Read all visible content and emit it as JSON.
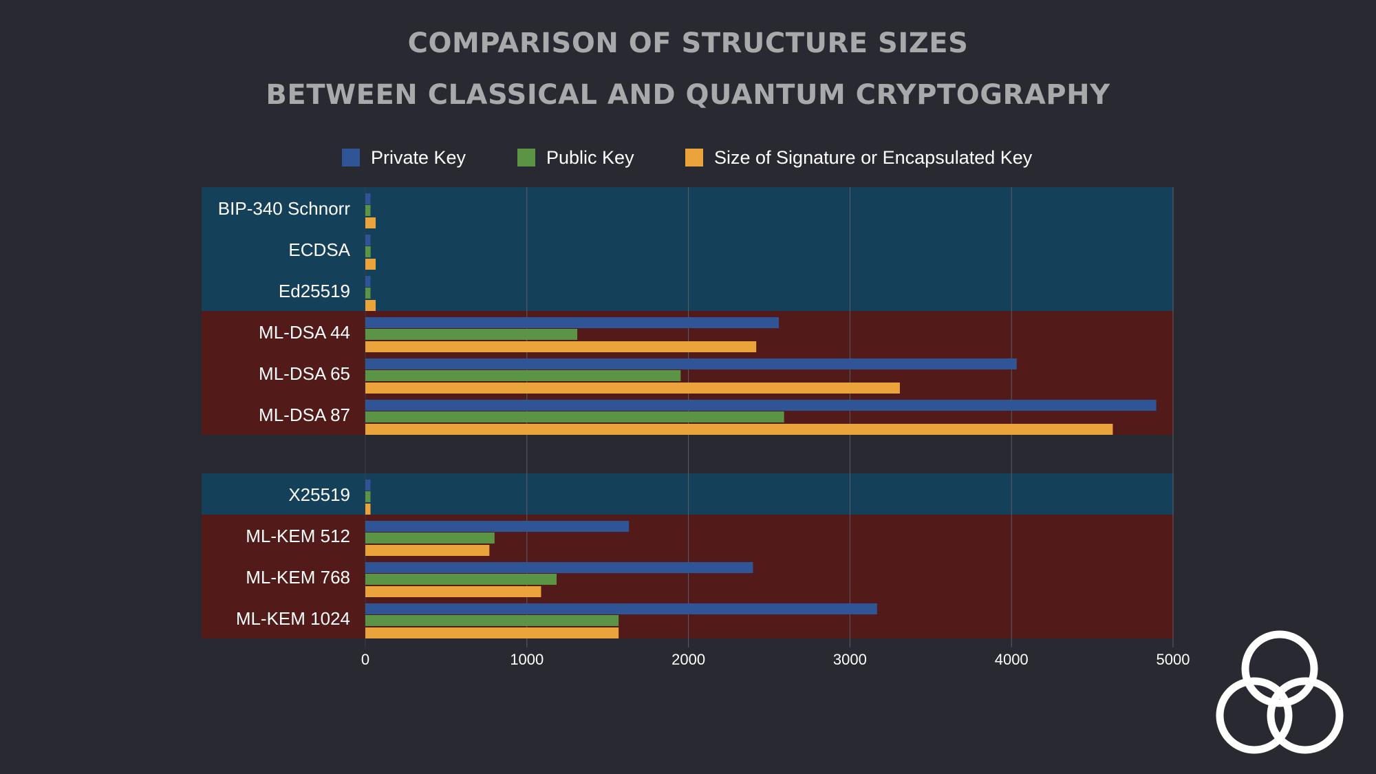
{
  "title_lines": [
    "COMPARISON OF STRUCTURE SIZES",
    "BETWEEN CLASSICAL AND QUANTUM CRYPTOGRAPHY"
  ],
  "colors": {
    "background": "#292a31",
    "classical_band": "#15405a",
    "quantum_band": "#521b19",
    "private_key": "#2f5597",
    "public_key": "#5b9445",
    "signature": "#eba33b",
    "grid": "#5a5d66"
  },
  "logo": {
    "icon": "interlocking-rings-logo"
  },
  "chart_data": {
    "type": "bar",
    "orientation": "horizontal",
    "title": "COMPARISON OF STRUCTURE SIZES BETWEEN CLASSICAL AND QUANTUM CRYPTOGRAPHY",
    "xlabel": "",
    "ylabel": "",
    "xlim": [
      0,
      5000
    ],
    "xticks": [
      0,
      1000,
      2000,
      3000,
      4000,
      5000
    ],
    "grid": true,
    "legend_position": "top",
    "groups": [
      {
        "categories": [
          {
            "label": "BIP-340 Schnorr",
            "kind": "classical"
          },
          {
            "label": "ECDSA",
            "kind": "classical"
          },
          {
            "label": "Ed25519",
            "kind": "classical"
          },
          {
            "label": "ML-DSA 44",
            "kind": "quantum"
          },
          {
            "label": "ML-DSA 65",
            "kind": "quantum"
          },
          {
            "label": "ML-DSA 87",
            "kind": "quantum"
          }
        ]
      },
      {
        "categories": [
          {
            "label": "X25519",
            "kind": "classical"
          },
          {
            "label": "ML-KEM 512",
            "kind": "quantum"
          },
          {
            "label": "ML-KEM 768",
            "kind": "quantum"
          },
          {
            "label": "ML-KEM 1024",
            "kind": "quantum"
          }
        ]
      }
    ],
    "series": [
      {
        "name": "Private Key",
        "color": "#2f5597",
        "values": [
          32,
          32,
          32,
          2560,
          4032,
          4896,
          32,
          1632,
          2400,
          3168
        ]
      },
      {
        "name": "Public Key",
        "color": "#5b9445",
        "values": [
          32,
          33,
          32,
          1312,
          1952,
          2592,
          32,
          800,
          1184,
          1568
        ]
      },
      {
        "name": "Size of Signature or Encapsulated Key",
        "color": "#eba33b",
        "values": [
          64,
          64,
          64,
          2420,
          3309,
          4627,
          32,
          768,
          1088,
          1568
        ]
      }
    ]
  }
}
